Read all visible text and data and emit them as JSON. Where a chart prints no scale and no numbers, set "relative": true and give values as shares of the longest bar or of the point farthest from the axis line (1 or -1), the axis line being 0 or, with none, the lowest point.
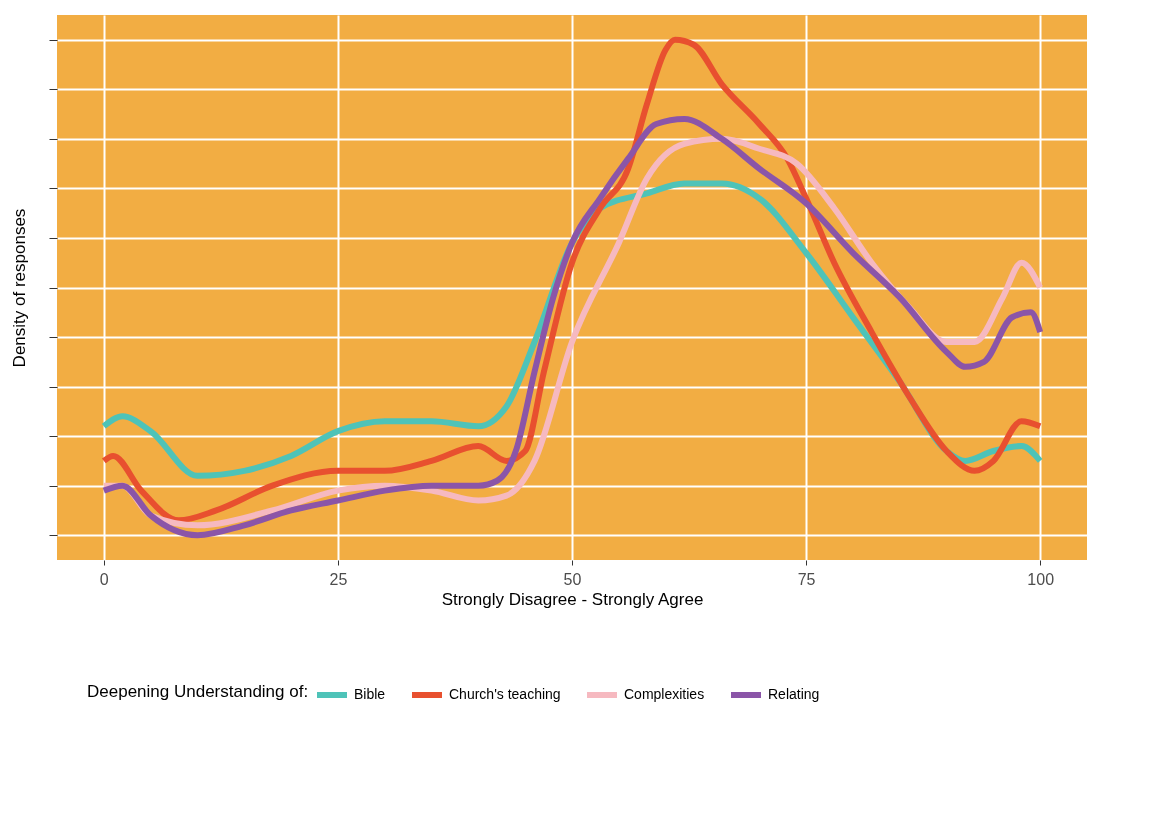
{
  "chart_data": {
    "type": "line",
    "xlabel": "Strongly Disagree - Strongly Agree",
    "ylabel": "Density of responses",
    "legend_title": "Deepening Understanding of:",
    "legend": "bottom",
    "grid": true,
    "relative": true,
    "line_style": "solid",
    "marker": "none",
    "xlim": [
      -5,
      105
    ],
    "xticks": [
      0,
      25,
      50,
      75,
      100
    ],
    "series": [
      {
        "name": "Bible",
        "color": "#4ec3b8",
        "x": [
          0,
          2,
          5,
          10,
          15,
          20,
          25,
          30,
          35,
          40,
          43,
          46,
          50,
          53,
          58,
          62,
          66,
          70,
          75,
          80,
          85,
          90,
          92,
          95,
          98,
          100
        ],
        "values": [
          0.22,
          0.24,
          0.21,
          0.12,
          0.13,
          0.16,
          0.21,
          0.23,
          0.23,
          0.22,
          0.26,
          0.39,
          0.59,
          0.66,
          0.69,
          0.71,
          0.71,
          0.68,
          0.57,
          0.44,
          0.31,
          0.17,
          0.15,
          0.17,
          0.18,
          0.15
        ]
      },
      {
        "name": "Church's teaching",
        "color": "#e8502f",
        "x": [
          0,
          1,
          4,
          8,
          12,
          18,
          25,
          30,
          35,
          40,
          43,
          45,
          47,
          50,
          53,
          56,
          58,
          60,
          61,
          63,
          66,
          70,
          73,
          75,
          78,
          82,
          86,
          90,
          93,
          95,
          98,
          100
        ],
        "values": [
          0.15,
          0.16,
          0.09,
          0.03,
          0.05,
          0.1,
          0.13,
          0.13,
          0.15,
          0.18,
          0.15,
          0.17,
          0.33,
          0.55,
          0.66,
          0.74,
          0.87,
          0.98,
          1.0,
          0.99,
          0.91,
          0.83,
          0.76,
          0.68,
          0.55,
          0.41,
          0.28,
          0.17,
          0.13,
          0.15,
          0.23,
          0.22
        ]
      },
      {
        "name": "Complexities",
        "color": "#f6b9c0",
        "x": [
          0,
          2,
          5,
          10,
          18,
          25,
          30,
          35,
          40,
          43,
          46,
          50,
          55,
          58,
          62,
          66,
          70,
          74,
          78,
          82,
          86,
          90,
          93,
          96,
          98,
          100
        ],
        "values": [
          0.1,
          0.1,
          0.04,
          0.02,
          0.05,
          0.09,
          0.1,
          0.09,
          0.07,
          0.08,
          0.15,
          0.39,
          0.59,
          0.72,
          0.79,
          0.8,
          0.78,
          0.75,
          0.66,
          0.55,
          0.46,
          0.39,
          0.39,
          0.48,
          0.55,
          0.5
        ]
      },
      {
        "name": "Relating",
        "color": "#8b55a8",
        "x": [
          0,
          2,
          5,
          10,
          15,
          20,
          25,
          30,
          35,
          40,
          42,
          44,
          46,
          48,
          50,
          53,
          56,
          59,
          62,
          66,
          70,
          75,
          80,
          85,
          90,
          92,
          94,
          97,
          99,
          100
        ],
        "values": [
          0.09,
          0.1,
          0.04,
          0.0,
          0.02,
          0.05,
          0.07,
          0.09,
          0.1,
          0.1,
          0.11,
          0.17,
          0.33,
          0.48,
          0.59,
          0.68,
          0.76,
          0.83,
          0.84,
          0.8,
          0.74,
          0.67,
          0.57,
          0.48,
          0.37,
          0.34,
          0.35,
          0.44,
          0.45,
          0.41
        ]
      }
    ]
  }
}
